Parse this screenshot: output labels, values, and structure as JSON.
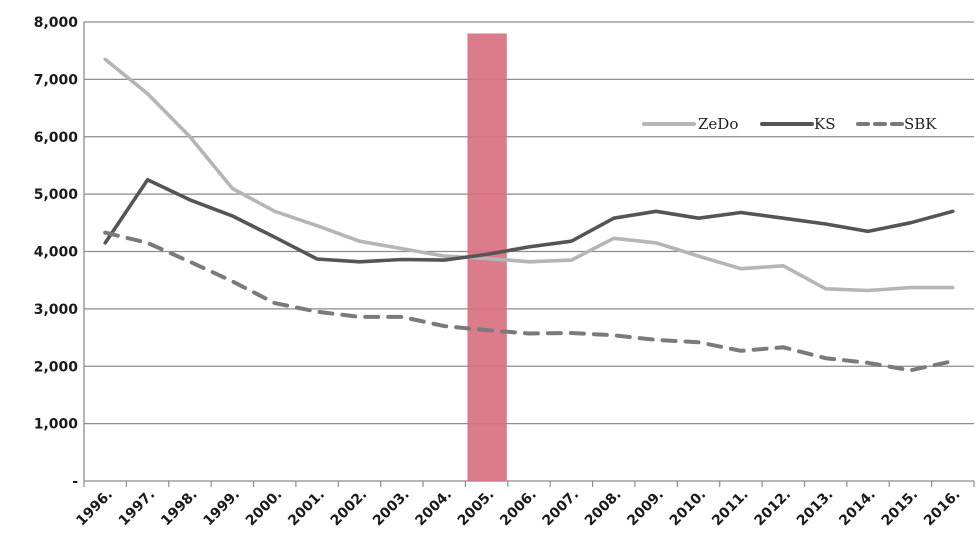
{
  "chart_data": {
    "type": "line",
    "title": "",
    "xlabel": "",
    "ylabel": "",
    "ylim": [
      0,
      8000
    ],
    "y_ticks": [
      "-",
      "1,000",
      "2,000",
      "3,000",
      "4,000",
      "5,000",
      "6,000",
      "7,000",
      "8,000"
    ],
    "y_tick_values": [
      0,
      1000,
      2000,
      3000,
      4000,
      5000,
      6000,
      7000,
      8000
    ],
    "grid": true,
    "legend_position": "top-right",
    "categories": [
      "1996.",
      "1997.",
      "1998.",
      "1999.",
      "2000.",
      "2001.",
      "2002.",
      "2003.",
      "2004.",
      "2005.",
      "2006.",
      "2007.",
      "2008.",
      "2009.",
      "2010.",
      "2011.",
      "2012.",
      "2013.",
      "2014.",
      "2015.",
      "2016."
    ],
    "highlight": {
      "category": "2005.",
      "color": "#d9707f",
      "top_value": 7800
    },
    "series": [
      {
        "name": "ZeDo",
        "color": "#b5b5b5",
        "dash": "solid",
        "values": [
          7350,
          6750,
          6000,
          5100,
          4700,
          4450,
          4180,
          4050,
          3920,
          3880,
          3820,
          3850,
          4230,
          4150,
          3920,
          3700,
          3750,
          3350,
          3320,
          3370,
          3370
        ]
      },
      {
        "name": "KS",
        "color": "#555555",
        "dash": "solid",
        "values": [
          4150,
          5250,
          4900,
          4620,
          4250,
          3870,
          3820,
          3860,
          3850,
          3950,
          4080,
          4180,
          4580,
          4700,
          4580,
          4680,
          4580,
          4480,
          4350,
          4500,
          4700
        ]
      },
      {
        "name": "SBK",
        "color": "#7a7a7a",
        "dash": "dashed",
        "values": [
          4330,
          4150,
          3820,
          3480,
          3100,
          2950,
          2860,
          2860,
          2700,
          2630,
          2570,
          2580,
          2540,
          2460,
          2420,
          2270,
          2330,
          2140,
          2060,
          1930,
          2090
        ]
      }
    ]
  }
}
